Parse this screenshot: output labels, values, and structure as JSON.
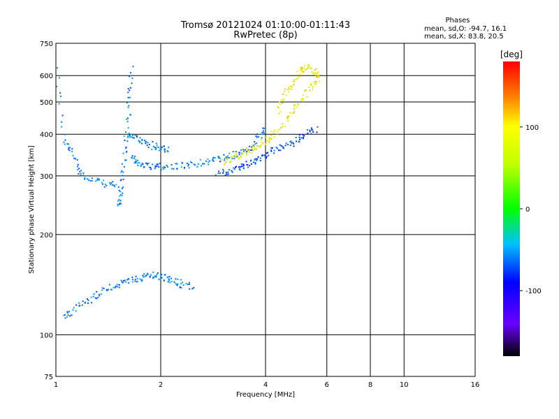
{
  "chart_data": {
    "type": "scatter",
    "title": "Tromsø 20121024 01:10:00-01:11:43",
    "subtitle": "RwPretec (8p)",
    "xlabel": "Frequency [MHz]",
    "ylabel": "Stationary phase Virtual Height [km]",
    "x_scale": "log",
    "y_scale": "log",
    "xlim": [
      1,
      16
    ],
    "ylim": [
      75,
      750
    ],
    "x_ticks": [
      1,
      2,
      4,
      6,
      8,
      10,
      16
    ],
    "y_ticks": [
      75,
      100,
      200,
      300,
      400,
      500,
      600,
      750
    ],
    "grid": true,
    "phases": {
      "heading": "Phases",
      "line1": "mean, sd,O: -94.7, 16.1",
      "line2": "mean, sd,X:  83.8, 20.5"
    },
    "colorbar": {
      "label": "[deg]",
      "range": [
        -180,
        180
      ],
      "ticks": [
        100,
        0,
        -100
      ]
    },
    "traces": [
      {
        "freq": [
          1.0,
          1.05,
          1.1,
          1.15,
          1.2,
          1.3,
          1.4,
          1.5
        ],
        "height": [
          630,
          380,
          360,
          320,
          300,
          290,
          285,
          280
        ],
        "phase": -100
      },
      {
        "freq": [
          1.5,
          1.52,
          1.55,
          1.57,
          1.6,
          1.62,
          1.65
        ],
        "height": [
          245,
          260,
          300,
          360,
          420,
          520,
          640
        ],
        "phase": -100
      },
      {
        "freq": [
          1.65,
          1.7,
          1.8,
          1.9,
          2.0,
          2.2,
          2.4,
          2.6,
          2.8,
          3.0,
          3.2,
          3.4,
          3.6,
          3.8,
          4.0
        ],
        "height": [
          340,
          330,
          325,
          322,
          320,
          322,
          325,
          330,
          335,
          340,
          345,
          355,
          365,
          390,
          420
        ],
        "phase": -100
      },
      {
        "freq": [
          1.62,
          1.7,
          1.8,
          1.9,
          2.0,
          2.1
        ],
        "height": [
          400,
          390,
          380,
          370,
          365,
          360
        ],
        "phase": -100
      },
      {
        "freq": [
          2.9,
          3.1,
          3.3,
          3.5,
          3.7,
          3.9,
          4.1,
          4.4,
          4.7,
          5.0,
          5.3,
          5.6
        ],
        "height": [
          305,
          310,
          318,
          325,
          335,
          345,
          355,
          365,
          375,
          390,
          405,
          420
        ],
        "phase": -115
      },
      {
        "freq": [
          3.0,
          3.2,
          3.4,
          3.6,
          3.8,
          4.0,
          4.2,
          4.5,
          4.8,
          5.1,
          5.4,
          5.7
        ],
        "height": [
          330,
          340,
          350,
          360,
          372,
          385,
          400,
          430,
          470,
          520,
          560,
          600
        ],
        "phase": 100
      },
      {
        "freq": [
          4.3,
          4.5,
          4.7,
          4.9,
          5.1,
          5.3,
          5.5,
          5.7
        ],
        "height": [
          470,
          520,
          560,
          600,
          630,
          640,
          620,
          600
        ],
        "phase": 100
      },
      {
        "freq": [
          1.05,
          1.1,
          1.2,
          1.3,
          1.4,
          1.5,
          1.6,
          1.7,
          1.8,
          1.9,
          2.0,
          2.1,
          2.2,
          2.3,
          2.5
        ],
        "height": [
          113,
          118,
          125,
          132,
          138,
          142,
          145,
          148,
          150,
          152,
          150,
          148,
          145,
          142,
          140
        ],
        "phase": -100
      }
    ]
  }
}
